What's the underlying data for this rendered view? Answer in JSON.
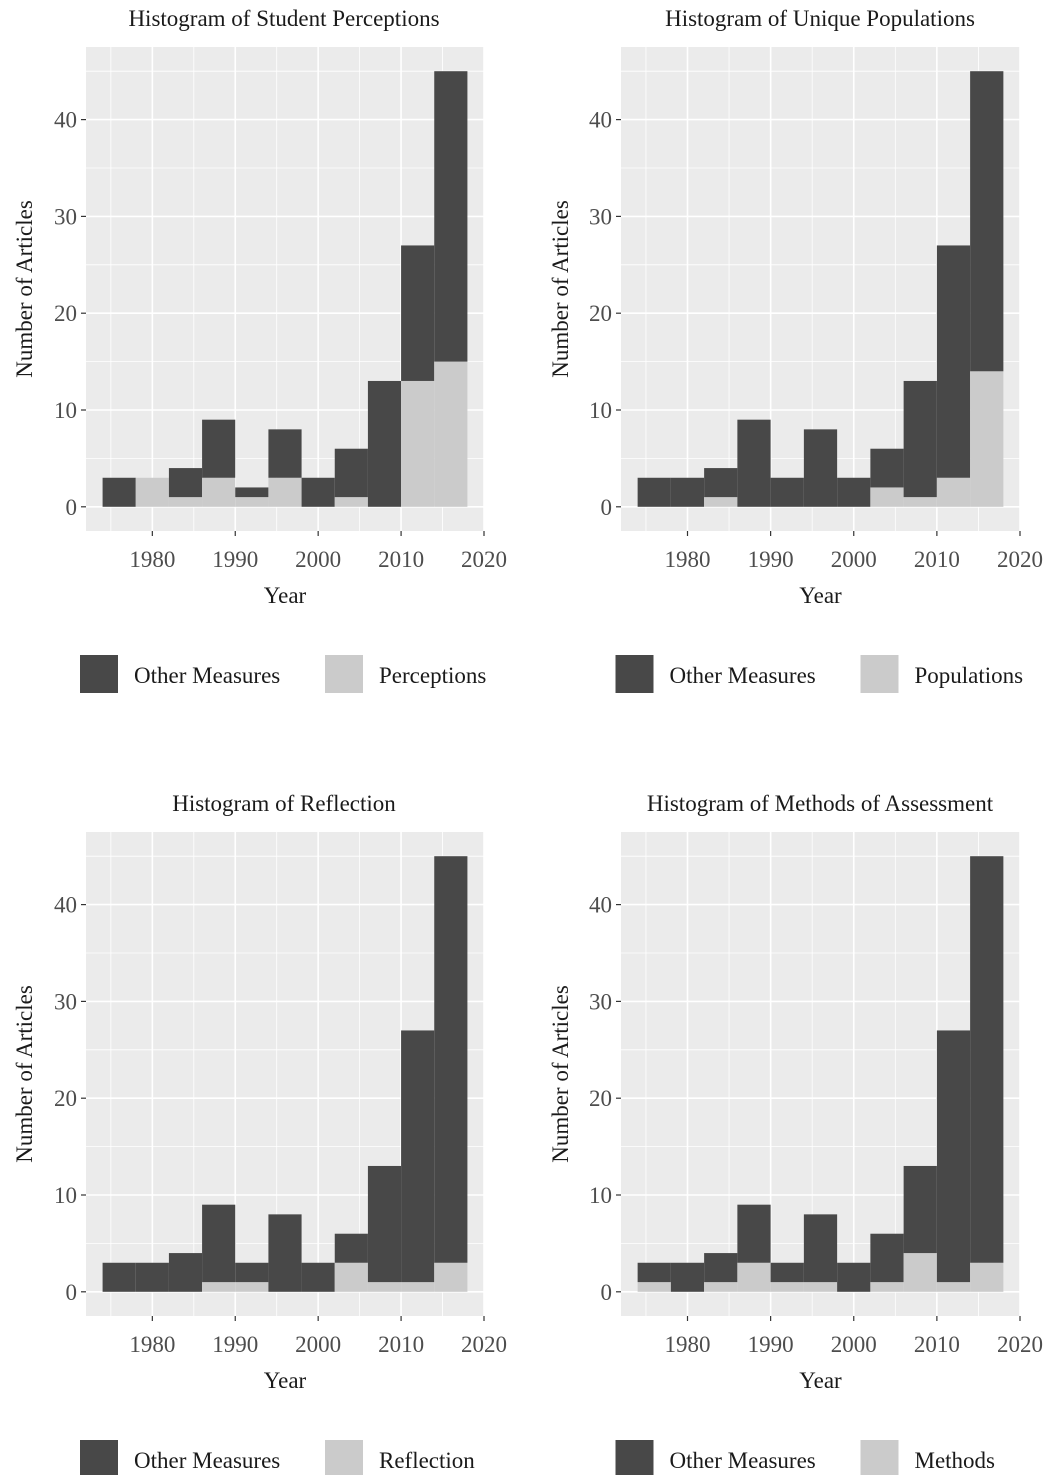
{
  "colors": {
    "other": "#484848",
    "highlight": "#cbcbcb",
    "panel_bg": "#ebebeb",
    "grid": "#ffffff",
    "text": "#1a1a1a",
    "tick_text": "#4d4d4d"
  },
  "chart_data": [
    {
      "type": "bar",
      "title": "Histogram of Student Perceptions",
      "xlabel": "Year",
      "ylabel": "Number of Articles",
      "xlim": [
        1972,
        2020
      ],
      "ylim": [
        -2.5,
        47.5
      ],
      "x_ticks": [
        1980,
        1990,
        2000,
        2010,
        2020
      ],
      "y_ticks": [
        0,
        10,
        20,
        30,
        40
      ],
      "grid": true,
      "bins": [
        [
          1974,
          1978
        ],
        [
          1978,
          1982
        ],
        [
          1982,
          1986
        ],
        [
          1986,
          1990
        ],
        [
          1990,
          1994
        ],
        [
          1994,
          1998
        ],
        [
          1998,
          2002
        ],
        [
          2002,
          2006
        ],
        [
          2006,
          2010
        ],
        [
          2010,
          2014
        ],
        [
          2014,
          2018
        ]
      ],
      "legend": [
        "Other Measures",
        "Perceptions"
      ],
      "legend_position": "bottom",
      "series": [
        {
          "name": "Other Measures",
          "values": [
            3,
            0,
            3,
            6,
            1,
            5,
            3,
            5,
            13,
            14,
            30
          ]
        },
        {
          "name": "Perceptions",
          "values": [
            0,
            3,
            1,
            3,
            1,
            3,
            0,
            1,
            0,
            13,
            15
          ]
        }
      ]
    },
    {
      "type": "bar",
      "title": "Histogram of Unique Populations",
      "xlabel": "Year",
      "ylabel": "Number of Articles",
      "xlim": [
        1972,
        2020
      ],
      "ylim": [
        -2.5,
        47.5
      ],
      "x_ticks": [
        1980,
        1990,
        2000,
        2010,
        2020
      ],
      "y_ticks": [
        0,
        10,
        20,
        30,
        40
      ],
      "grid": true,
      "bins": [
        [
          1974,
          1978
        ],
        [
          1978,
          1982
        ],
        [
          1982,
          1986
        ],
        [
          1986,
          1990
        ],
        [
          1990,
          1994
        ],
        [
          1994,
          1998
        ],
        [
          1998,
          2002
        ],
        [
          2002,
          2006
        ],
        [
          2006,
          2010
        ],
        [
          2010,
          2014
        ],
        [
          2014,
          2018
        ]
      ],
      "legend": [
        "Other Measures",
        "Populations"
      ],
      "legend_position": "bottom",
      "series": [
        {
          "name": "Other Measures",
          "values": [
            3,
            3,
            3,
            9,
            3,
            8,
            3,
            4,
            12,
            24,
            31
          ]
        },
        {
          "name": "Populations",
          "values": [
            0,
            0,
            1,
            0,
            0,
            0,
            0,
            2,
            1,
            3,
            14
          ]
        }
      ]
    },
    {
      "type": "bar",
      "title": "Histogram of Reflection",
      "xlabel": "Year",
      "ylabel": "Number of Articles",
      "xlim": [
        1972,
        2020
      ],
      "ylim": [
        -2.5,
        47.5
      ],
      "x_ticks": [
        1980,
        1990,
        2000,
        2010,
        2020
      ],
      "y_ticks": [
        0,
        10,
        20,
        30,
        40
      ],
      "grid": true,
      "bins": [
        [
          1974,
          1978
        ],
        [
          1978,
          1982
        ],
        [
          1982,
          1986
        ],
        [
          1986,
          1990
        ],
        [
          1990,
          1994
        ],
        [
          1994,
          1998
        ],
        [
          1998,
          2002
        ],
        [
          2002,
          2006
        ],
        [
          2006,
          2010
        ],
        [
          2010,
          2014
        ],
        [
          2014,
          2018
        ]
      ],
      "legend": [
        "Other Measures",
        "Reflection"
      ],
      "legend_position": "bottom",
      "series": [
        {
          "name": "Other Measures",
          "values": [
            3,
            3,
            4,
            8,
            2,
            8,
            3,
            3,
            12,
            26,
            42
          ]
        },
        {
          "name": "Reflection",
          "values": [
            0,
            0,
            0,
            1,
            1,
            0,
            0,
            3,
            1,
            1,
            3
          ]
        }
      ]
    },
    {
      "type": "bar",
      "title": "Histogram of Methods of Assessment",
      "xlabel": "Year",
      "ylabel": "Number of Articles",
      "xlim": [
        1972,
        2020
      ],
      "ylim": [
        -2.5,
        47.5
      ],
      "x_ticks": [
        1980,
        1990,
        2000,
        2010,
        2020
      ],
      "y_ticks": [
        0,
        10,
        20,
        30,
        40
      ],
      "grid": true,
      "bins": [
        [
          1974,
          1978
        ],
        [
          1978,
          1982
        ],
        [
          1982,
          1986
        ],
        [
          1986,
          1990
        ],
        [
          1990,
          1994
        ],
        [
          1994,
          1998
        ],
        [
          1998,
          2002
        ],
        [
          2002,
          2006
        ],
        [
          2006,
          2010
        ],
        [
          2010,
          2014
        ],
        [
          2014,
          2018
        ]
      ],
      "legend": [
        "Other Measures",
        "Methods"
      ],
      "legend_position": "bottom",
      "series": [
        {
          "name": "Other Measures",
          "values": [
            2,
            3,
            3,
            6,
            2,
            7,
            3,
            5,
            9,
            26,
            42
          ]
        },
        {
          "name": "Methods",
          "values": [
            1,
            0,
            1,
            3,
            1,
            1,
            0,
            1,
            4,
            1,
            3
          ]
        }
      ]
    }
  ]
}
